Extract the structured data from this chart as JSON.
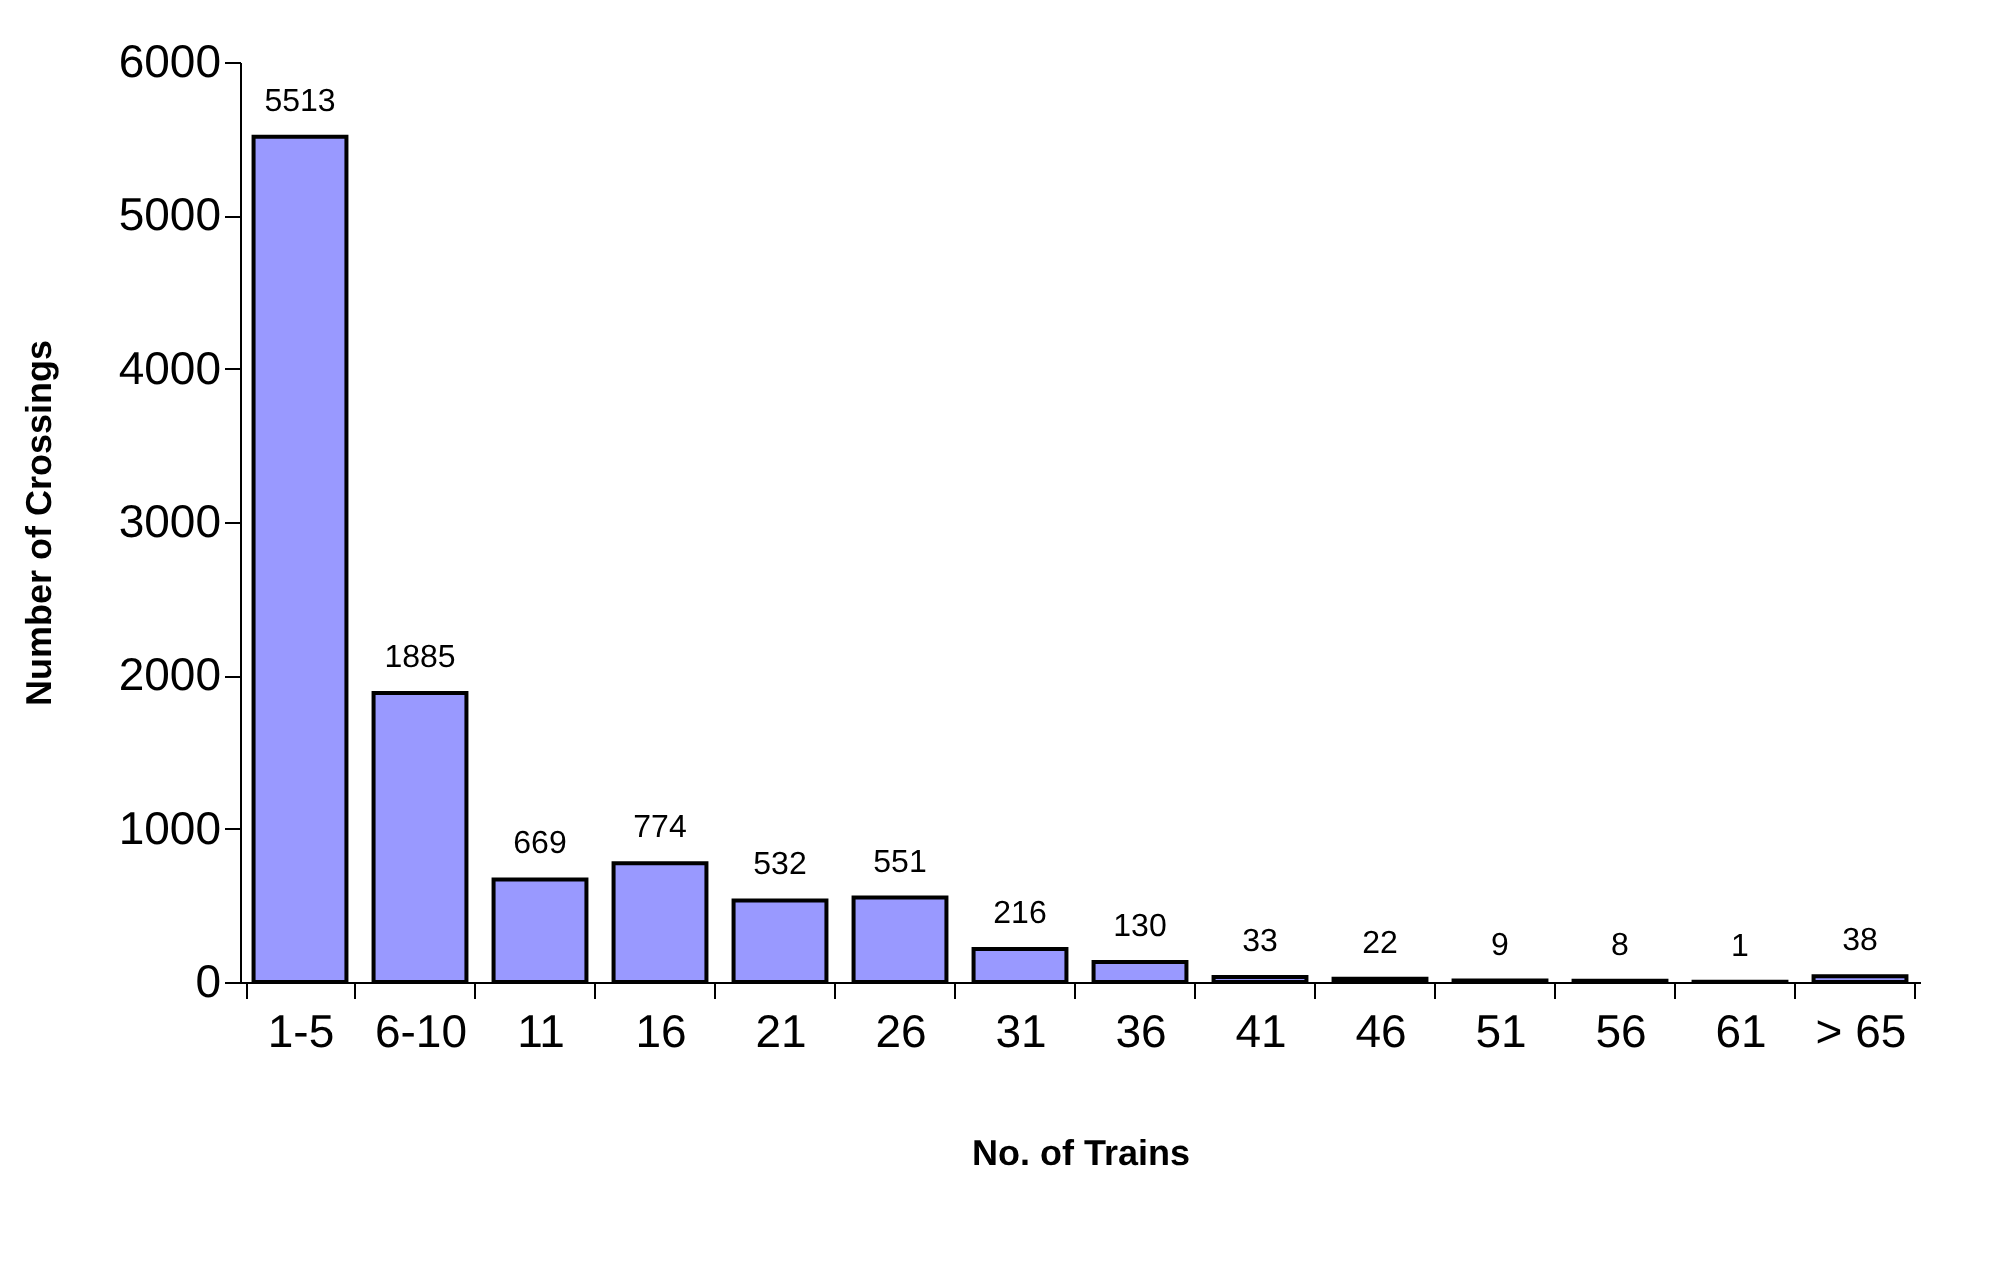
{
  "chart_data": {
    "type": "bar",
    "xlabel": "No. of Trains",
    "ylabel": "Number of Crossings",
    "categories": [
      "1-5",
      "6-10",
      "11",
      "16",
      "21",
      "26",
      "31",
      "36",
      "41",
      "46",
      "51",
      "56",
      "61",
      "> 65"
    ],
    "values": [
      5513,
      1885,
      669,
      774,
      532,
      551,
      216,
      130,
      33,
      22,
      9,
      8,
      1,
      38
    ],
    "color": "#9999ff",
    "ylim": [
      0,
      6000
    ],
    "yticks": [
      0,
      1000,
      2000,
      3000,
      4000,
      5000,
      6000
    ],
    "data_labels": true,
    "grid": false
  }
}
